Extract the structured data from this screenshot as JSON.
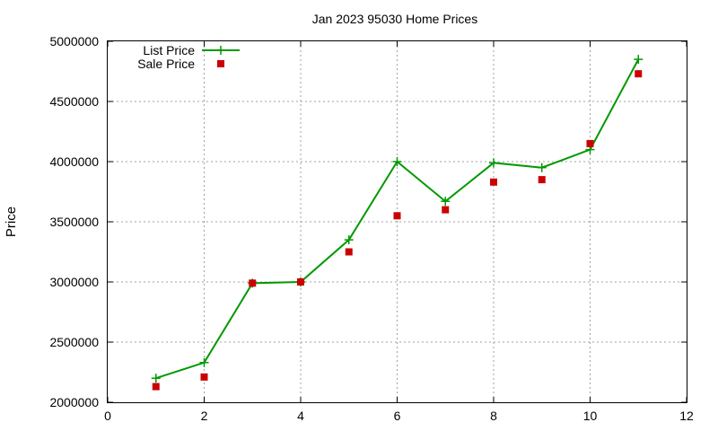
{
  "chart_data": {
    "type": "line",
    "title": "Jan 2023 95030 Home Prices",
    "xlabel": "",
    "ylabel": "Price",
    "xlim": [
      0,
      12
    ],
    "ylim": [
      2000000,
      5000000
    ],
    "x_ticks": [
      0,
      2,
      4,
      6,
      8,
      10,
      12
    ],
    "y_ticks": [
      2000000,
      2500000,
      3000000,
      3500000,
      4000000,
      4500000,
      5000000
    ],
    "grid": true,
    "legend_position": "top-left",
    "series": [
      {
        "name": "List Price",
        "style": "linespoints",
        "color": "#009900",
        "marker": "plus",
        "x": [
          1,
          2,
          3,
          4,
          5,
          6,
          7,
          8,
          9,
          10,
          11
        ],
        "y": [
          2200000,
          2330000,
          2990000,
          3000000,
          3350000,
          4000000,
          3670000,
          3990000,
          3950000,
          4100000,
          4850000
        ]
      },
      {
        "name": "Sale Price",
        "style": "points",
        "color": "#cc0000",
        "marker": "square",
        "x": [
          1,
          2,
          3,
          4,
          5,
          6,
          7,
          8,
          9,
          10,
          11
        ],
        "y": [
          2130000,
          2210000,
          2990000,
          3000000,
          3250000,
          3550000,
          3600000,
          3830000,
          3850000,
          4150000,
          4730000
        ]
      }
    ]
  }
}
